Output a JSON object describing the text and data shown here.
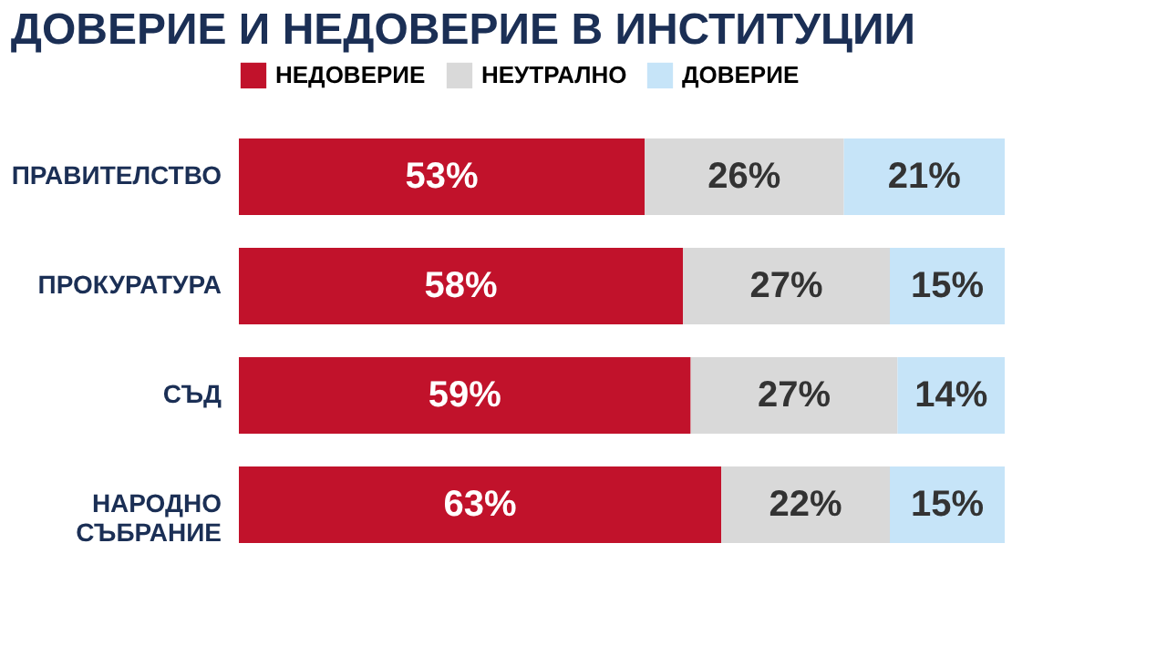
{
  "chart_data": {
    "type": "bar",
    "orientation": "horizontal",
    "stacked": true,
    "title": "ДОВЕРИЕ И НЕДОВЕРИЕ В ИНСТИТУЦИИ",
    "categories": [
      "ПРАВИТЕЛСТВО",
      "ПРОКУРАТУРА",
      "СЪД",
      "НАРОДНО СЪБРАНИЕ"
    ],
    "series": [
      {
        "name": "НЕДОВЕРИЕ",
        "color": "#c1122b",
        "values": [
          53,
          58,
          59,
          63
        ],
        "value_labels": [
          "53%",
          "58%",
          "59%",
          "63%"
        ]
      },
      {
        "name": "НЕУТРАЛНО",
        "color": "#d9d9d9",
        "values": [
          26,
          27,
          27,
          22
        ],
        "value_labels": [
          "26%",
          "27%",
          "27%",
          "22%"
        ]
      },
      {
        "name": "ДОВЕРИЕ",
        "color": "#c6e4f8",
        "values": [
          21,
          15,
          14,
          15
        ],
        "value_labels": [
          "21%",
          "15%",
          "14%",
          "15%"
        ]
      }
    ],
    "xlim": [
      0,
      100
    ],
    "tick_labels": "y",
    "legend": "top left"
  }
}
